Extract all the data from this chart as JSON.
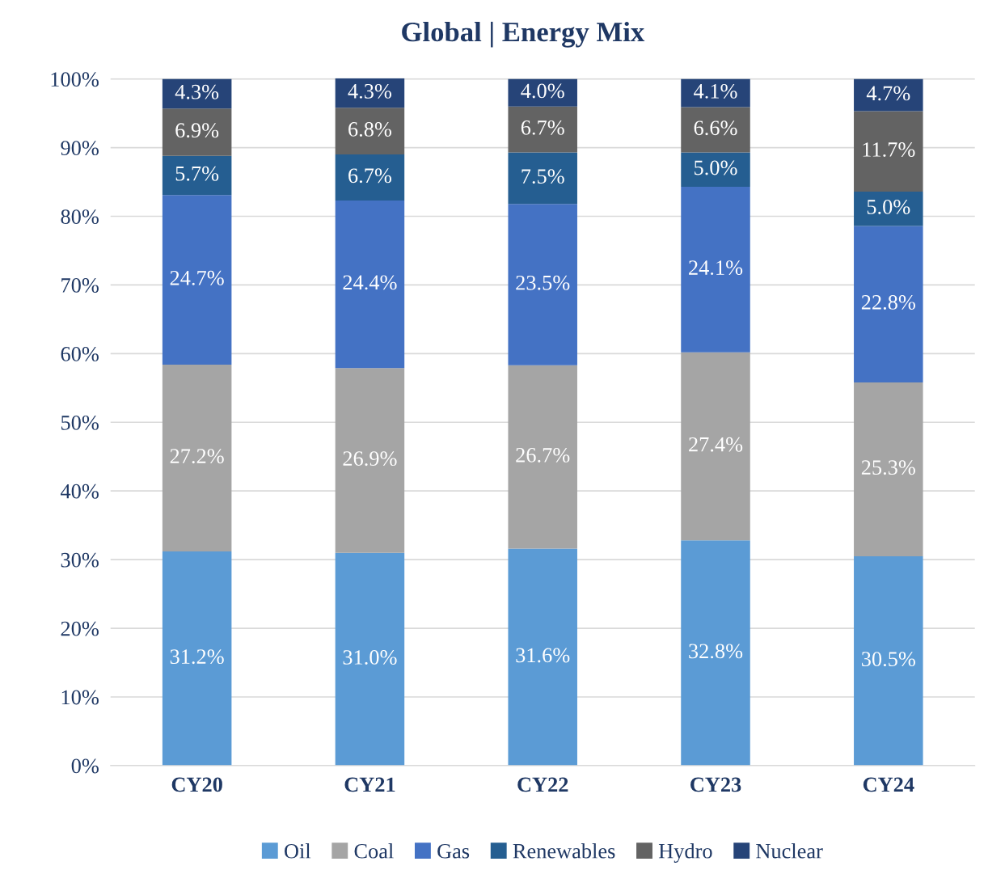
{
  "chart_data": {
    "type": "bar",
    "title": "Global | Energy Mix",
    "stacked": true,
    "categories": [
      "CY20",
      "CY21",
      "CY22",
      "CY23",
      "CY24"
    ],
    "series": [
      {
        "name": "Oil",
        "color": "#5b9bd5",
        "values": [
          31.2,
          31.0,
          31.6,
          32.8,
          30.5
        ],
        "value_labels": [
          "31.2%",
          "31.0%",
          "31.6%",
          "32.8%",
          "30.5%"
        ]
      },
      {
        "name": "Coal",
        "color": "#a5a5a5",
        "values": [
          27.2,
          26.9,
          26.7,
          27.4,
          25.3
        ],
        "value_labels": [
          "27.2%",
          "26.9%",
          "26.7%",
          "27.4%",
          "25.3%"
        ]
      },
      {
        "name": "Gas",
        "color": "#4472c4",
        "values": [
          24.7,
          24.4,
          23.5,
          24.1,
          22.8
        ],
        "value_labels": [
          "24.7%",
          "24.4%",
          "23.5%",
          "24.1%",
          "22.8%"
        ]
      },
      {
        "name": "Renewables",
        "color": "#255e91",
        "values": [
          5.7,
          6.7,
          7.5,
          5.0,
          5.0
        ],
        "value_labels": [
          "5.7%",
          "6.7%",
          "7.5%",
          "5.0%",
          "5.0%"
        ]
      },
      {
        "name": "Hydro",
        "color": "#636363",
        "values": [
          6.9,
          6.8,
          6.7,
          6.6,
          11.7
        ],
        "value_labels": [
          "6.9%",
          "6.8%",
          "6.7%",
          "6.6%",
          "11.7%"
        ]
      },
      {
        "name": "Nuclear",
        "color": "#264478",
        "values": [
          4.3,
          4.3,
          4.0,
          4.1,
          4.7
        ],
        "value_labels": [
          "4.3%",
          "4.3%",
          "4.0%",
          "4.1%",
          "4.7%"
        ]
      }
    ],
    "ylim": [
      0,
      100.1
    ],
    "yticks": [
      {
        "value": 0,
        "label": "0%"
      },
      {
        "value": 10,
        "label": "10%"
      },
      {
        "value": 20,
        "label": "20%"
      },
      {
        "value": 30,
        "label": "30%"
      },
      {
        "value": 40,
        "label": "40%"
      },
      {
        "value": 50,
        "label": "50%"
      },
      {
        "value": 60,
        "label": "60%"
      },
      {
        "value": 70,
        "label": "70%"
      },
      {
        "value": 80,
        "label": "80%"
      },
      {
        "value": 90,
        "label": "90%"
      },
      {
        "value": 100,
        "label": "100%"
      }
    ],
    "grid": "y",
    "legend": "bottom"
  }
}
